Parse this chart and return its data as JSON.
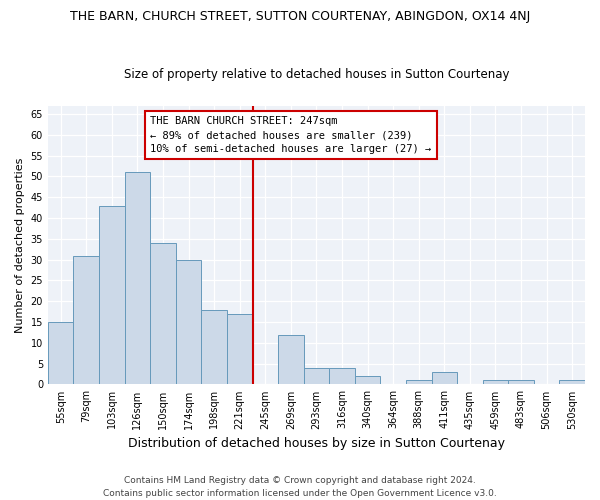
{
  "title": "THE BARN, CHURCH STREET, SUTTON COURTENAY, ABINGDON, OX14 4NJ",
  "subtitle": "Size of property relative to detached houses in Sutton Courtenay",
  "xlabel": "Distribution of detached houses by size in Sutton Courtenay",
  "ylabel": "Number of detached properties",
  "bin_labels": [
    "55sqm",
    "79sqm",
    "103sqm",
    "126sqm",
    "150sqm",
    "174sqm",
    "198sqm",
    "221sqm",
    "245sqm",
    "269sqm",
    "293sqm",
    "316sqm",
    "340sqm",
    "364sqm",
    "388sqm",
    "411sqm",
    "435sqm",
    "459sqm",
    "483sqm",
    "506sqm",
    "530sqm"
  ],
  "bar_heights": [
    15,
    31,
    43,
    51,
    34,
    30,
    18,
    17,
    0,
    12,
    4,
    4,
    2,
    0,
    1,
    3,
    0,
    1,
    1,
    0,
    1
  ],
  "bar_color": "#ccd9e8",
  "bar_edge_color": "#6699bb",
  "vline_x_index": 8,
  "vline_color": "#cc0000",
  "ylim": [
    0,
    67
  ],
  "yticks": [
    0,
    5,
    10,
    15,
    20,
    25,
    30,
    35,
    40,
    45,
    50,
    55,
    60,
    65
  ],
  "annotation_title": "THE BARN CHURCH STREET: 247sqm",
  "annotation_line1": "← 89% of detached houses are smaller (239)",
  "annotation_line2": "10% of semi-detached houses are larger (27) →",
  "annotation_box_color": "#ffffff",
  "annotation_box_edge": "#cc0000",
  "footer_line1": "Contains HM Land Registry data © Crown copyright and database right 2024.",
  "footer_line2": "Contains public sector information licensed under the Open Government Licence v3.0.",
  "background_color": "#ffffff",
  "plot_background_color": "#eef2f8",
  "title_fontsize": 9,
  "subtitle_fontsize": 8.5,
  "xlabel_fontsize": 9,
  "ylabel_fontsize": 8,
  "tick_fontsize": 7,
  "footer_fontsize": 6.5,
  "annotation_fontsize": 7.5
}
